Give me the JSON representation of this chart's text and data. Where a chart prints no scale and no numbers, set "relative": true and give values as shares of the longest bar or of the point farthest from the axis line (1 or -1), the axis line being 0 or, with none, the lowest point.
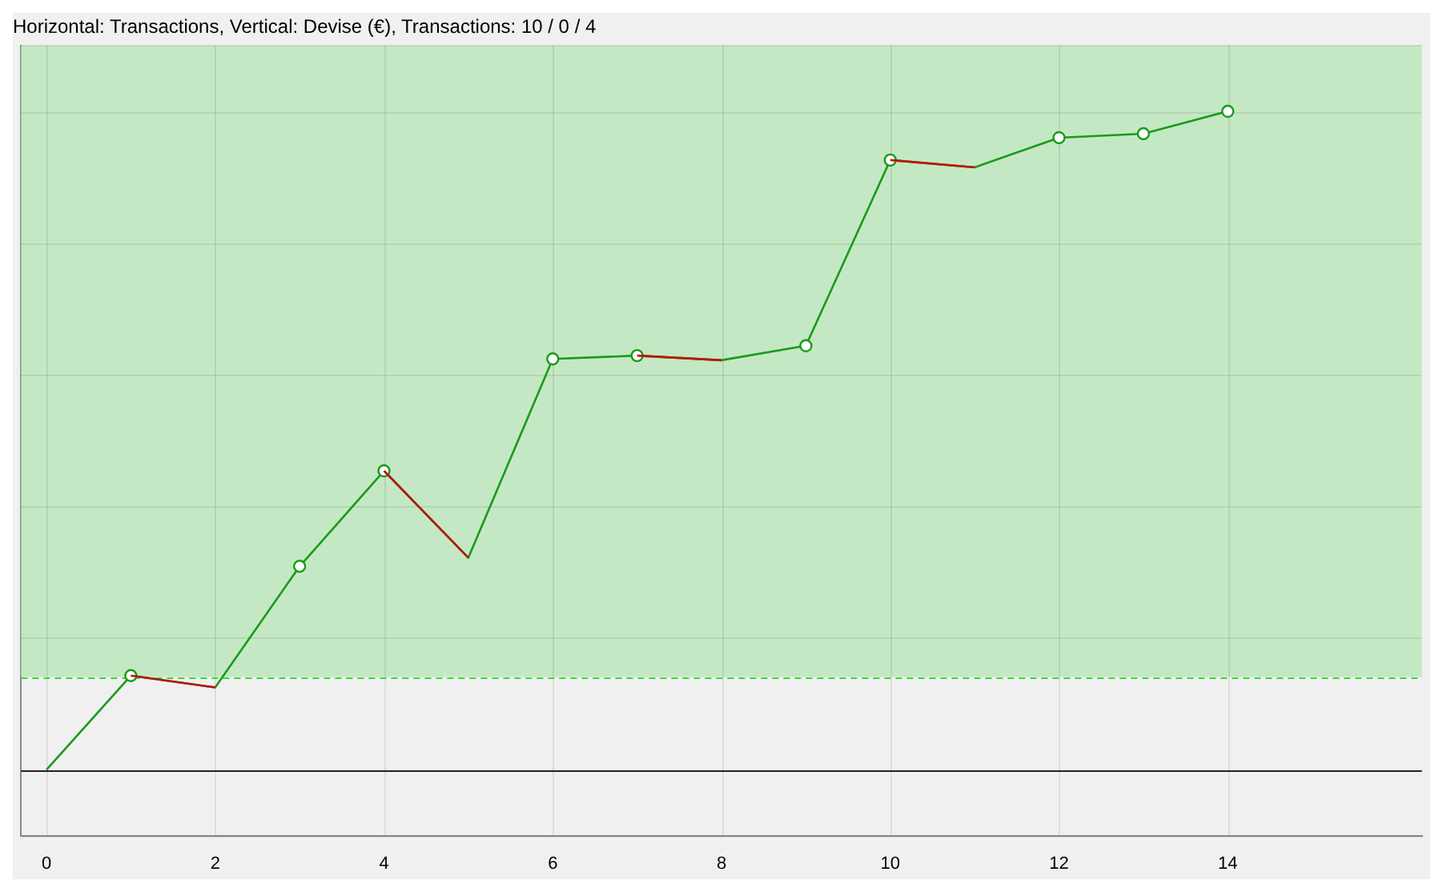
{
  "chart_data": {
    "type": "line",
    "title": "Horizontal: Transactions, Vertical: Devise (€), Transactions: 10 / 0 / 4",
    "relative": true,
    "x": [
      0,
      1,
      2,
      3,
      4,
      5,
      6,
      7,
      8,
      9,
      10,
      11,
      12,
      13,
      14
    ],
    "series": [
      {
        "color": "#1a9a1a",
        "colors": [
          null,
          "#1a9a1a",
          null,
          "#1a9a1a",
          "#1a9a1a",
          null,
          "#1a9a1a",
          "#1a9a1a",
          null,
          "#1a9a1a",
          "#1a9a1a",
          null,
          "#1a9a1a",
          "#1a9a1a",
          "#1a9a1a"
        ],
        "values": [
          0,
          0.143,
          0.125,
          0.309,
          0.454,
          0.322,
          0.624,
          0.629,
          0.622,
          0.644,
          0.926,
          0.915,
          0.96,
          0.966,
          1
        ]
      },
      {
        "color": "#c01010",
        "marker": "none",
        "values": [
          null,
          0.143,
          0.125,
          null,
          0.454,
          0.322,
          null,
          0.629,
          0.622,
          null,
          0.926,
          0.915,
          null,
          null,
          null
        ]
      }
    ],
    "xlim": [
      -0.3,
      16.3
    ],
    "xticks": [
      0,
      2,
      4,
      6,
      8,
      10,
      12,
      14
    ],
    "ref_lines": [
      {
        "axis": "y",
        "value": 0,
        "color": "#202020",
        "line_style": "solid"
      },
      {
        "axis": "y",
        "value": 0.141,
        "color": "#33dd33",
        "line_style": "dashed"
      }
    ],
    "bands": [
      {
        "axis": "y",
        "from": 0.141,
        "to": 1.1,
        "color": "#c4e8c4"
      }
    ],
    "grid": true,
    "marker": "circle",
    "line_style": "solid",
    "legend": false
  }
}
